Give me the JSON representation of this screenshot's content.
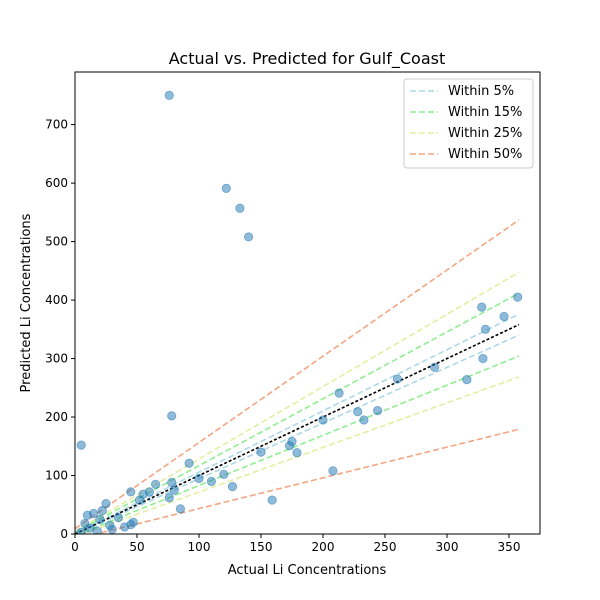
{
  "chart_data": {
    "type": "scatter",
    "title": "Actual vs. Predicted for Gulf_Coast",
    "xlabel": "Actual Li Concentrations",
    "ylabel": "Predicted Li Concentrations",
    "xlim": [
      0,
      375
    ],
    "ylim": [
      0,
      790
    ],
    "xticks": [
      0,
      50,
      100,
      150,
      200,
      250,
      300,
      350
    ],
    "yticks": [
      0,
      100,
      200,
      300,
      400,
      500,
      600,
      700
    ],
    "grid": false,
    "legend_position": "top-right",
    "point_color": "#1f77b4",
    "points": [
      {
        "x": 5,
        "y": 152
      },
      {
        "x": 76,
        "y": 750
      },
      {
        "x": 122,
        "y": 591
      },
      {
        "x": 133,
        "y": 557
      },
      {
        "x": 140,
        "y": 508
      },
      {
        "x": 78,
        "y": 202
      },
      {
        "x": 357,
        "y": 405
      },
      {
        "x": 328,
        "y": 388
      },
      {
        "x": 331,
        "y": 350
      },
      {
        "x": 346,
        "y": 372
      },
      {
        "x": 329,
        "y": 300
      },
      {
        "x": 316,
        "y": 264
      },
      {
        "x": 213,
        "y": 241
      },
      {
        "x": 228,
        "y": 209
      },
      {
        "x": 244,
        "y": 211
      },
      {
        "x": 233,
        "y": 195
      },
      {
        "x": 208,
        "y": 108
      },
      {
        "x": 179,
        "y": 139
      },
      {
        "x": 173,
        "y": 151
      },
      {
        "x": 175,
        "y": 158
      },
      {
        "x": 159,
        "y": 58
      },
      {
        "x": 127,
        "y": 81
      },
      {
        "x": 92,
        "y": 121
      },
      {
        "x": 110,
        "y": 90
      },
      {
        "x": 85,
        "y": 43
      },
      {
        "x": 78,
        "y": 88
      },
      {
        "x": 76,
        "y": 62
      },
      {
        "x": 80,
        "y": 75
      },
      {
        "x": 100,
        "y": 95
      },
      {
        "x": 60,
        "y": 72
      },
      {
        "x": 55,
        "y": 68
      },
      {
        "x": 52,
        "y": 58
      },
      {
        "x": 45,
        "y": 72
      },
      {
        "x": 47,
        "y": 20
      },
      {
        "x": 45,
        "y": 16
      },
      {
        "x": 40,
        "y": 12
      },
      {
        "x": 25,
        "y": 52
      },
      {
        "x": 28,
        "y": 15
      },
      {
        "x": 15,
        "y": 35
      },
      {
        "x": 10,
        "y": 32
      },
      {
        "x": 8,
        "y": 18
      },
      {
        "x": 12,
        "y": 10
      },
      {
        "x": 18,
        "y": 5
      },
      {
        "x": 20,
        "y": 25
      },
      {
        "x": 22,
        "y": 40
      },
      {
        "x": 30,
        "y": 8
      },
      {
        "x": 5,
        "y": 3
      },
      {
        "x": 35,
        "y": 28
      },
      {
        "x": 65,
        "y": 85
      },
      {
        "x": 150,
        "y": 140
      },
      {
        "x": 260,
        "y": 265
      },
      {
        "x": 200,
        "y": 195
      },
      {
        "x": 290,
        "y": 285
      },
      {
        "x": 120,
        "y": 102
      }
    ],
    "bands": [
      {
        "name": "Within 5%",
        "pct": 0.05,
        "color": "#add8e6",
        "dash": "6,3"
      },
      {
        "name": "Within 15%",
        "pct": 0.15,
        "color": "#90ee90",
        "dash": "6,3"
      },
      {
        "name": "Within 25%",
        "pct": 0.25,
        "color": "#e4eea0",
        "dash": "6,3"
      },
      {
        "name": "Within 50%",
        "pct": 0.5,
        "color": "#f4a582",
        "dash": "6,3"
      }
    ],
    "identity_color": "#000000"
  }
}
